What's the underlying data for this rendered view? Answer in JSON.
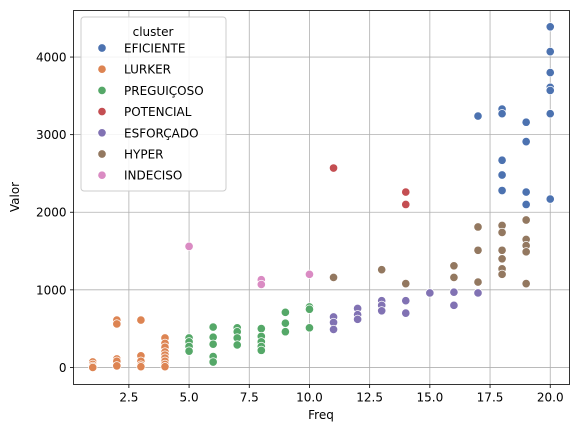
{
  "chart_data": {
    "type": "scatter",
    "xlabel": "Freq",
    "ylabel": "Valor",
    "xlim": [
      0.2,
      20.8
    ],
    "ylim": [
      -220,
      4600
    ],
    "xticks": [
      2.5,
      5.0,
      7.5,
      10.0,
      12.5,
      15.0,
      17.5,
      20.0
    ],
    "xtick_labels": [
      "2.5",
      "5.0",
      "7.5",
      "10.0",
      "12.5",
      "15.0",
      "17.5",
      "20.0"
    ],
    "yticks": [
      0,
      1000,
      2000,
      3000,
      4000
    ],
    "ytick_labels": [
      "0",
      "1000",
      "2000",
      "3000",
      "4000"
    ],
    "grid": true,
    "legend": {
      "title": "cluster",
      "placement": "upper-left"
    },
    "series": [
      {
        "name": "EFICIENTE",
        "color": "#4c72b0",
        "points": [
          [
            17,
            3240
          ],
          [
            18,
            3330
          ],
          [
            18,
            3270
          ],
          [
            18,
            2670
          ],
          [
            18,
            2480
          ],
          [
            18,
            2280
          ],
          [
            19,
            3160
          ],
          [
            19,
            2910
          ],
          [
            19,
            2260
          ],
          [
            19,
            2100
          ],
          [
            20,
            4390
          ],
          [
            20,
            4070
          ],
          [
            20,
            3800
          ],
          [
            20,
            3610
          ],
          [
            20,
            3570
          ],
          [
            20,
            3270
          ],
          [
            20,
            2170
          ]
        ]
      },
      {
        "name": "LURKER",
        "color": "#dd8452",
        "points": [
          [
            1,
            70
          ],
          [
            1,
            40
          ],
          [
            1,
            15
          ],
          [
            1,
            0
          ],
          [
            2,
            610
          ],
          [
            2,
            560
          ],
          [
            2,
            110
          ],
          [
            2,
            80
          ],
          [
            2,
            20
          ],
          [
            3,
            610
          ],
          [
            3,
            150
          ],
          [
            3,
            80
          ],
          [
            3,
            30
          ],
          [
            3,
            10
          ],
          [
            4,
            380
          ],
          [
            4,
            310
          ],
          [
            4,
            260
          ],
          [
            4,
            200
          ],
          [
            4,
            160
          ],
          [
            4,
            120
          ],
          [
            4,
            80
          ],
          [
            4,
            40
          ],
          [
            4,
            10
          ]
        ]
      },
      {
        "name": "PREGUIÇOSO",
        "color": "#55a868",
        "points": [
          [
            5,
            380
          ],
          [
            5,
            330
          ],
          [
            5,
            270
          ],
          [
            5,
            210
          ],
          [
            6,
            520
          ],
          [
            6,
            390
          ],
          [
            6,
            300
          ],
          [
            6,
            140
          ],
          [
            6,
            70
          ],
          [
            7,
            510
          ],
          [
            7,
            460
          ],
          [
            7,
            380
          ],
          [
            7,
            290
          ],
          [
            8,
            500
          ],
          [
            8,
            400
          ],
          [
            8,
            330
          ],
          [
            8,
            270
          ],
          [
            8,
            220
          ],
          [
            9,
            710
          ],
          [
            9,
            570
          ],
          [
            9,
            460
          ],
          [
            10,
            780
          ],
          [
            10,
            750
          ],
          [
            10,
            510
          ]
        ]
      },
      {
        "name": "POTENCIAL",
        "color": "#c44e52",
        "points": [
          [
            11,
            2570
          ],
          [
            14,
            2260
          ],
          [
            14,
            2100
          ]
        ]
      },
      {
        "name": "ESFORÇADO",
        "color": "#8172b3",
        "points": [
          [
            11,
            650
          ],
          [
            11,
            580
          ],
          [
            11,
            490
          ],
          [
            12,
            760
          ],
          [
            12,
            680
          ],
          [
            12,
            620
          ],
          [
            13,
            860
          ],
          [
            13,
            800
          ],
          [
            13,
            730
          ],
          [
            14,
            860
          ],
          [
            14,
            700
          ],
          [
            15,
            960
          ],
          [
            16,
            970
          ],
          [
            16,
            800
          ],
          [
            17,
            960
          ]
        ]
      },
      {
        "name": "HYPER",
        "color": "#937860",
        "points": [
          [
            11,
            1160
          ],
          [
            13,
            1260
          ],
          [
            14,
            1080
          ],
          [
            16,
            1310
          ],
          [
            16,
            1160
          ],
          [
            17,
            1810
          ],
          [
            17,
            1510
          ],
          [
            17,
            1100
          ],
          [
            18,
            1830
          ],
          [
            18,
            1740
          ],
          [
            18,
            1510
          ],
          [
            18,
            1400
          ],
          [
            18,
            1270
          ],
          [
            18,
            1200
          ],
          [
            19,
            1900
          ],
          [
            19,
            1650
          ],
          [
            19,
            1570
          ],
          [
            19,
            1490
          ],
          [
            19,
            1080
          ]
        ]
      },
      {
        "name": "INDECISO",
        "color": "#da8bc3",
        "points": [
          [
            5,
            1560
          ],
          [
            8,
            1130
          ],
          [
            8,
            1070
          ],
          [
            10,
            1200
          ]
        ]
      }
    ]
  }
}
